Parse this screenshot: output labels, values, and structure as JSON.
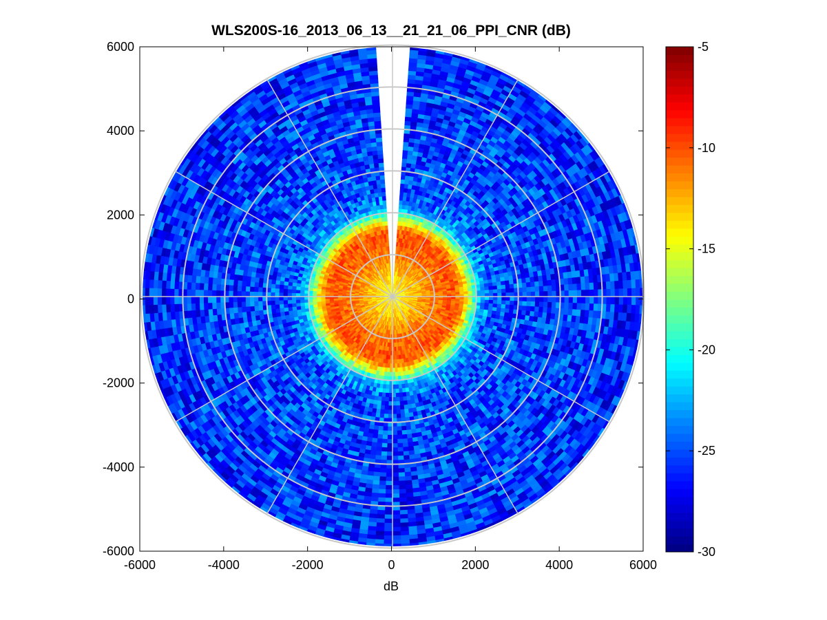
{
  "chart_data": {
    "type": "heatmap",
    "subtype": "polar-ppi",
    "title": "WLS200S-16_2013_06_13__21_21_06_PPI_CNR (dB)",
    "xlabel": "dB",
    "ylabel": "",
    "xlim": [
      -6000,
      6000
    ],
    "ylim": [
      -6000,
      6000
    ],
    "x_ticks": [
      "-6000",
      "-4000",
      "-2000",
      "0",
      "2000",
      "4000",
      "6000"
    ],
    "y_ticks": [
      "6000",
      "4000",
      "2000",
      "0",
      "-2000",
      "-4000",
      "-6000"
    ],
    "range_rings": [
      1000,
      2000,
      3000,
      4000,
      5000,
      6000
    ],
    "spoke_angles_deg": [
      0,
      30,
      60,
      90,
      120,
      150,
      180,
      210,
      240,
      270,
      300,
      330
    ],
    "max_range": 6000,
    "grid": true,
    "colormap": "jet",
    "colorbar": {
      "clim": [
        -30,
        -5
      ],
      "ticks": [
        "-5",
        "-10",
        "-15",
        "-20",
        "-25",
        "-30"
      ],
      "placement": "right"
    },
    "missing_sector_deg": [
      -4,
      4
    ],
    "radial_profile": [
      {
        "r": 0,
        "cnr": -14.5
      },
      {
        "r": 500,
        "cnr": -13
      },
      {
        "r": 1000,
        "cnr": -11
      },
      {
        "r": 1500,
        "cnr": -10
      },
      {
        "r": 1700,
        "cnr": -12.5
      },
      {
        "r": 1900,
        "cnr": -18
      },
      {
        "r": 2100,
        "cnr": -23
      },
      {
        "r": 2500,
        "cnr": -25
      },
      {
        "r": 6000,
        "cnr": -26
      }
    ],
    "colors": {
      "ring": "#c8c8c8",
      "spoke": "#ffffff",
      "axis": "#000000"
    }
  }
}
